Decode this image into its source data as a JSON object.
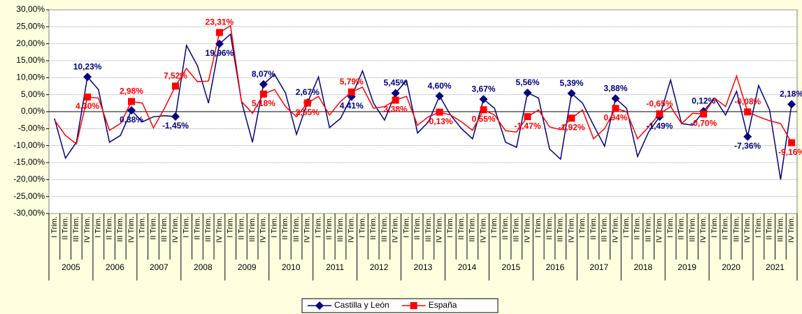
{
  "chart_data": {
    "type": "line",
    "categories": [
      "I Trim.",
      "II Trim.",
      "III Trim.",
      "IV Trim.",
      "I Trim.",
      "II Trim.",
      "III Trim.",
      "IV Trim.",
      "I Trim.",
      "II Trim.",
      "III Trim.",
      "IV Trim.",
      "I Trim.",
      "II Trim.",
      "III Trim.",
      "IV Trim.",
      "I Trim.",
      "II Trim.",
      "III Trim.",
      "IV Trim.",
      "I Trim.",
      "II Trim.",
      "III Trim.",
      "IV Trim.",
      "I Trim.",
      "II Trim.",
      "III Trim.",
      "IV Trim.",
      "I Trim.",
      "II Trim.",
      "III Trim.",
      "IV Trim.",
      "I Trim.",
      "II Trim.",
      "III Trim.",
      "IV Trim.",
      "I Trim.",
      "II Trim.",
      "III Trim.",
      "IV Trim.",
      "I Trim.",
      "II Trim.",
      "III Trim.",
      "IV Trim.",
      "I Trim.",
      "II Trim.",
      "III Trim.",
      "IV Trim.",
      "I Trim.",
      "II Trim.",
      "III Trim.",
      "IV Trim.",
      "I Trim.",
      "II Trim.",
      "III Trim.",
      "IV Trim.",
      "I Trim.",
      "II Trim.",
      "III Trim.",
      "IV Trim.",
      "I Trim.",
      "II Trim.",
      "III Trim.",
      "IV Trim.",
      "I Trim.",
      "II Trim.",
      "III Trim.",
      "IV Trim."
    ],
    "groups": [
      "2005",
      "2006",
      "2007",
      "2008",
      "2009",
      "2010",
      "2011",
      "2012",
      "2013",
      "2014",
      "2015",
      "2016",
      "2017",
      "2018",
      "2019",
      "2020",
      "2021"
    ],
    "series": [
      {
        "name": "Castilla y León",
        "color": "#000080",
        "marker": "diamond",
        "values": [
          -2,
          -13.7,
          -9,
          10.23,
          6.5,
          -9,
          -7,
          0.38,
          -3,
          -1.5,
          -1.2,
          -1.45,
          19.5,
          13.5,
          2.5,
          19.96,
          22.8,
          3,
          -9,
          8.07,
          11,
          5.5,
          -6.7,
          2.67,
          10.2,
          -4.7,
          -2,
          4.41,
          12,
          2.5,
          -2.5,
          5.45,
          9.2,
          -6.3,
          -3,
          4.6,
          -1,
          -5,
          -8,
          3.67,
          1,
          -9,
          -10.5,
          5.56,
          4,
          -11,
          -14,
          5.39,
          2.5,
          -4,
          -10.2,
          3.88,
          1,
          -13.2,
          -6,
          -1.49,
          9.3,
          -3.5,
          -4,
          0.12,
          4,
          -1,
          6,
          -7.36,
          7.7,
          0.5,
          -20,
          2.18
        ],
        "value_labels": [
          null,
          null,
          null,
          "10,23%",
          null,
          null,
          null,
          "0,38%",
          null,
          null,
          null,
          "-1,45%",
          null,
          null,
          null,
          "19,96%",
          null,
          null,
          null,
          "8,07%",
          null,
          null,
          null,
          "2,67%",
          null,
          null,
          null,
          "4,41%",
          null,
          null,
          null,
          "5,45%",
          null,
          null,
          null,
          "4,60%",
          null,
          null,
          null,
          "3,67%",
          null,
          null,
          null,
          "5,56%",
          null,
          null,
          null,
          "5,39%",
          null,
          null,
          null,
          "3,88%",
          null,
          null,
          null,
          "-1,49%",
          null,
          null,
          null,
          "0,12%",
          null,
          null,
          null,
          "-7,36%",
          null,
          null,
          null,
          "2,18%"
        ]
      },
      {
        "name": "España",
        "color": "#ff0000",
        "marker": "square",
        "values": [
          -2.5,
          -7,
          -9.5,
          4.3,
          4,
          -5.5,
          -3.5,
          2.98,
          2.5,
          -4.8,
          1,
          7.52,
          12.7,
          8.8,
          9,
          23.31,
          25.3,
          3,
          -0.5,
          5.18,
          6.5,
          1.5,
          -1.5,
          2.55,
          4.5,
          -1,
          3,
          5.79,
          7.2,
          1,
          1.5,
          3.38,
          4.5,
          -4,
          -1.5,
          -0.13,
          -1,
          -3,
          -5.5,
          0.55,
          -1,
          -5.6,
          -6,
          -1.47,
          0.5,
          -4.5,
          -5.3,
          -1.92,
          0.5,
          -8,
          -5,
          0.94,
          0,
          -8,
          -4.5,
          -0.65,
          1.5,
          -3.5,
          -0.5,
          -0.7,
          4,
          1.5,
          10.5,
          -0.08,
          -1.5,
          -2.7,
          -3.5,
          -9.16
        ],
        "value_labels": [
          null,
          null,
          null,
          "4,30%",
          null,
          null,
          null,
          "2,98%",
          null,
          null,
          null,
          "7,52%",
          null,
          null,
          null,
          "23,31%",
          null,
          null,
          null,
          "5,18%",
          null,
          null,
          null,
          "2,55%",
          null,
          null,
          null,
          "5,79%",
          null,
          null,
          null,
          "3,38%",
          null,
          null,
          null,
          "-0,13%",
          null,
          null,
          null,
          "0,55%",
          null,
          null,
          null,
          "-1,47%",
          null,
          null,
          null,
          "-1,92%",
          null,
          null,
          null,
          "0,94%",
          null,
          null,
          null,
          "-0,65%",
          null,
          null,
          null,
          "-0,70%",
          null,
          null,
          null,
          "-0,08%",
          null,
          null,
          null,
          "-9,16%"
        ]
      }
    ],
    "ylim": [
      -30,
      30
    ],
    "yticks": [
      {
        "value": -30,
        "label": "-30,00%"
      },
      {
        "value": -25,
        "label": "-25,00%"
      },
      {
        "value": -20,
        "label": "-20,00%"
      },
      {
        "value": -15,
        "label": "-15,00%"
      },
      {
        "value": -10,
        "label": "-10,00%"
      },
      {
        "value": -5,
        "label": "-5,00%"
      },
      {
        "value": 0,
        "label": "0,00%"
      },
      {
        "value": 5,
        "label": "5,00%"
      },
      {
        "value": 10,
        "label": "10,00%"
      },
      {
        "value": 15,
        "label": "15,00%"
      },
      {
        "value": 20,
        "label": "20,00%"
      },
      {
        "value": 25,
        "label": "25,00%"
      },
      {
        "value": 30,
        "label": "30,00%"
      }
    ],
    "grid": true,
    "legend": "bottom"
  }
}
